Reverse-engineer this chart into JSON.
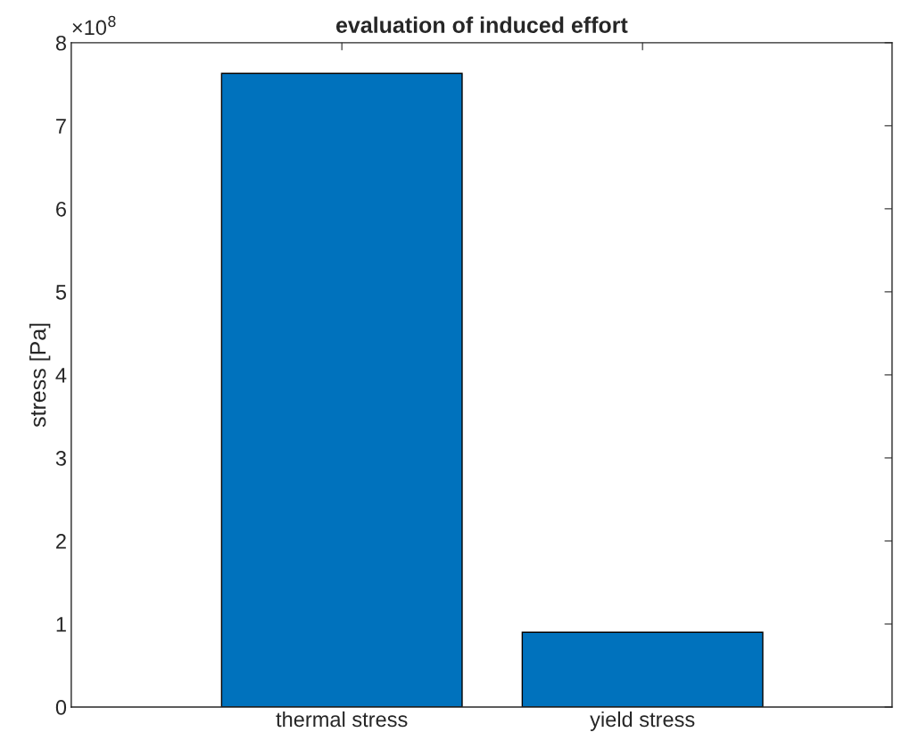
{
  "chart_data": {
    "type": "bar",
    "title": "evaluation of induced effort",
    "ylabel": "stress [Pa]",
    "categories": [
      "thermal stress",
      "yield stress"
    ],
    "values": [
      7.63,
      0.9
    ],
    "color": "#0072bd",
    "ylim": [
      0,
      8
    ],
    "yticks": [
      0,
      1,
      2,
      3,
      4,
      5,
      6,
      7,
      8
    ],
    "annotations": [
      "×10$^{8}$"
    ],
    "grid": false,
    "legend": false
  }
}
